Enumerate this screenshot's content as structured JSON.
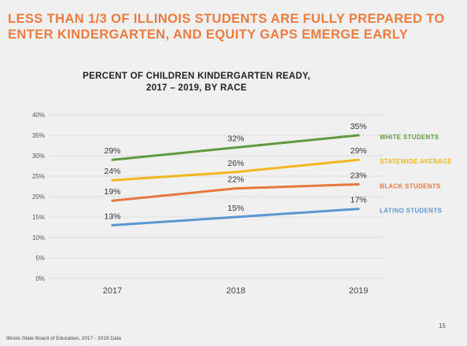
{
  "slide": {
    "headline_line1": "LESS THAN 1/3 OF ILLINOIS STUDENTS ARE FULLY PREPARED TO",
    "headline_line2": "ENTER KINDERGARTEN, AND EQUITY GAPS EMERGE EARLY",
    "source": "Illinois State Board of Education, 2017 - 2019 Data",
    "page_number": "15"
  },
  "chart_data": {
    "type": "line",
    "title_line1": "PERCENT OF CHILDREN KINDERGARTEN READY,",
    "title_line2": "2017 – 2019, BY RACE",
    "x": [
      "2017",
      "2018",
      "2019"
    ],
    "ylim": [
      0,
      40
    ],
    "y_ticks": [
      "0%",
      "5%",
      "10%",
      "15%",
      "20%",
      "25%",
      "30%",
      "35%",
      "40%"
    ],
    "grid": true,
    "legend_placement": "right, at line ends",
    "series": [
      {
        "name": "WHITE STUDENTS",
        "values": [
          29,
          32,
          35
        ],
        "labels": [
          "29%",
          "32%",
          "35%"
        ],
        "color": "#5e9a3f"
      },
      {
        "name": "STATEWIDE AVERAGE",
        "values": [
          24,
          26,
          29
        ],
        "labels": [
          "24%",
          "26%",
          "29%"
        ],
        "color": "#f2b71e"
      },
      {
        "name": "BLACK STUDENTS",
        "values": [
          19,
          22,
          23
        ],
        "labels": [
          "19%",
          "22%",
          "23%"
        ],
        "color": "#e5793c"
      },
      {
        "name": "LATINO STUDENTS",
        "values": [
          13,
          15,
          17
        ],
        "labels": [
          "13%",
          "15%",
          "17%"
        ],
        "color": "#5b95d2"
      }
    ]
  }
}
